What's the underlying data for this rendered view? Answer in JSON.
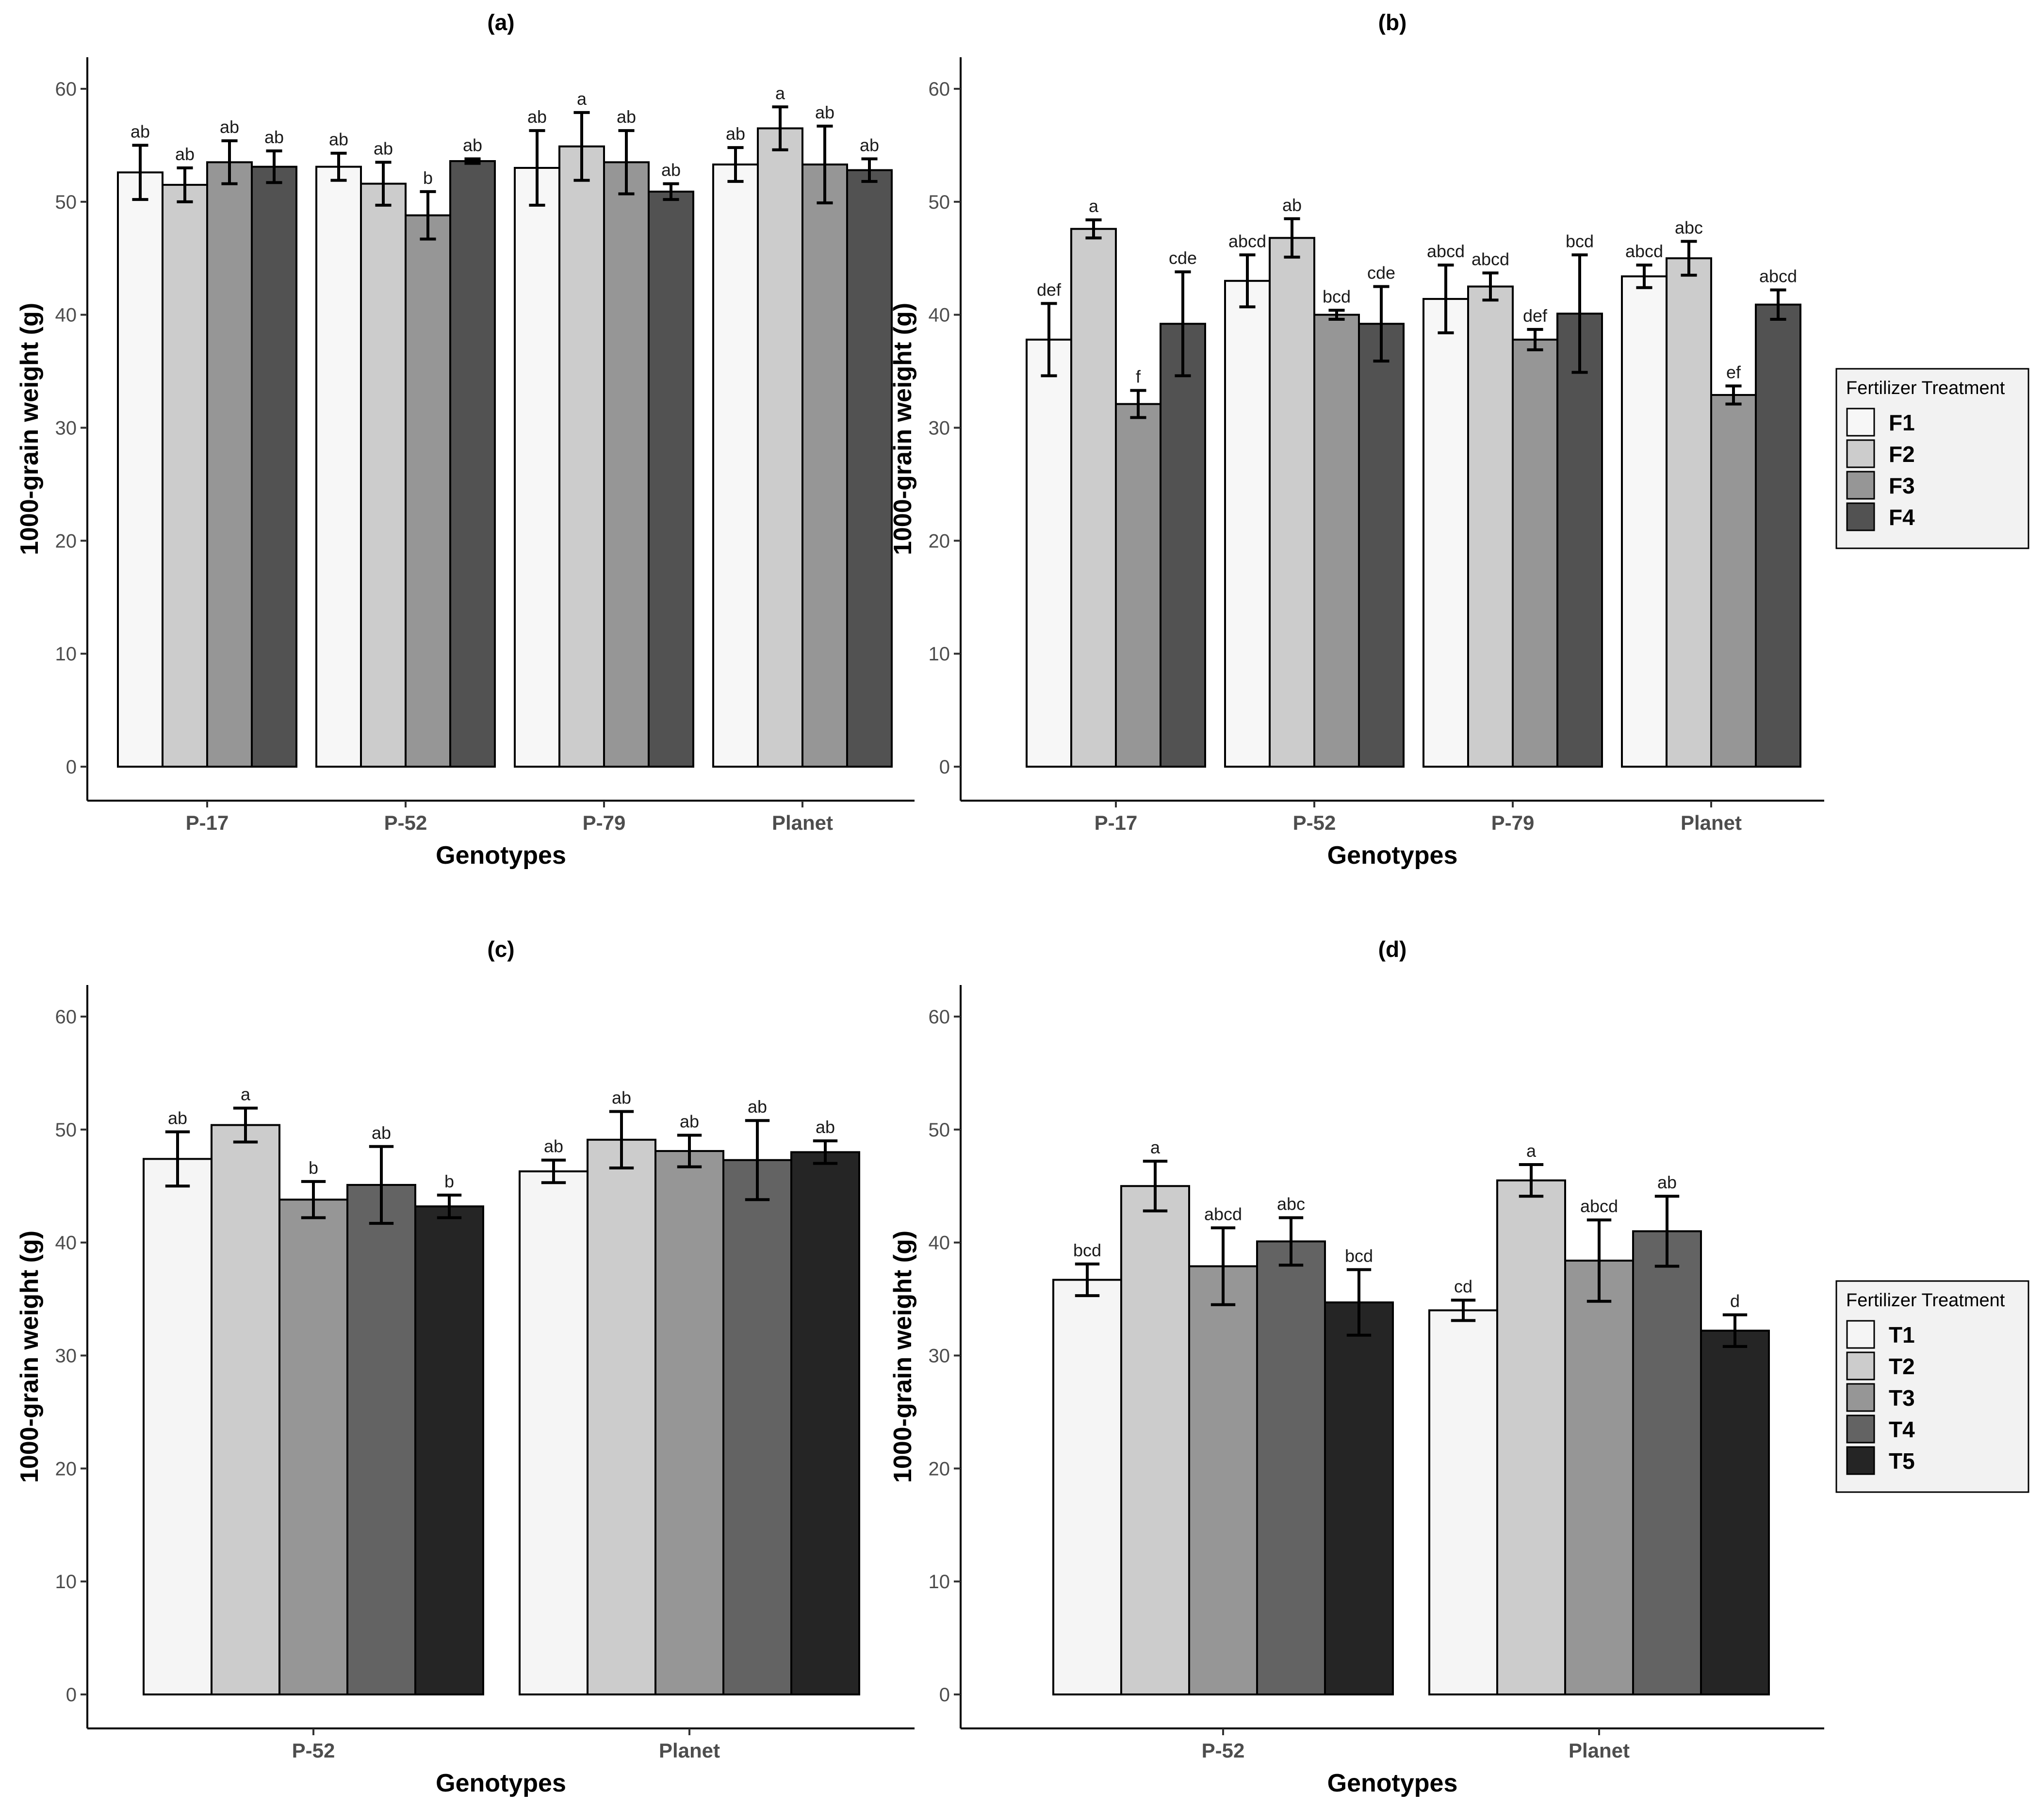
{
  "chart_data": [
    {
      "id": "a",
      "type": "bar",
      "title": "(a)",
      "xlabel": "Genotypes",
      "ylabel": "1000-grain weight (g)",
      "ylim": [
        0,
        60
      ],
      "yticks": [
        0,
        10,
        20,
        30,
        40,
        50,
        60
      ],
      "categories": [
        "P-17",
        "P-52",
        "P-79",
        "Planet"
      ],
      "series": [
        {
          "name": "F1",
          "color": "#f7f7f7",
          "values": [
            52.6,
            53.1,
            53.0,
            53.3
          ],
          "errors": [
            2.4,
            1.2,
            3.3,
            1.5
          ],
          "labels": [
            "ab",
            "ab",
            "ab",
            "ab"
          ]
        },
        {
          "name": "F2",
          "color": "#cccccc",
          "values": [
            51.5,
            51.6,
            54.9,
            56.5
          ],
          "errors": [
            1.5,
            1.9,
            3.0,
            1.9
          ],
          "labels": [
            "ab",
            "ab",
            "a",
            "a"
          ]
        },
        {
          "name": "F3",
          "color": "#969696",
          "values": [
            53.5,
            48.8,
            53.5,
            53.3
          ],
          "errors": [
            1.9,
            2.1,
            2.8,
            3.4
          ],
          "labels": [
            "ab",
            "b",
            "ab",
            "ab"
          ]
        },
        {
          "name": "F4",
          "color": "#525252",
          "values": [
            53.1,
            53.6,
            50.9,
            52.8
          ],
          "errors": [
            1.4,
            0.2,
            0.7,
            1.0
          ],
          "labels": [
            "ab",
            "ab",
            "ab",
            "ab"
          ]
        }
      ]
    },
    {
      "id": "b",
      "type": "bar",
      "title": "(b)",
      "xlabel": "Genotypes",
      "ylabel": "1000-grain weight (g)",
      "ylim": [
        0,
        60
      ],
      "yticks": [
        0,
        10,
        20,
        30,
        40,
        50,
        60
      ],
      "categories": [
        "P-17",
        "P-52",
        "P-79",
        "Planet"
      ],
      "series": [
        {
          "name": "F1",
          "color": "#f7f7f7",
          "values": [
            37.8,
            43.0,
            41.4,
            43.4
          ],
          "errors": [
            3.2,
            2.3,
            3.0,
            1.0
          ],
          "labels": [
            "def",
            "abcd",
            "abcd",
            "abcd"
          ]
        },
        {
          "name": "F2",
          "color": "#cccccc",
          "values": [
            47.6,
            46.8,
            42.5,
            45.0
          ],
          "errors": [
            0.8,
            1.7,
            1.2,
            1.5
          ],
          "labels": [
            "a",
            "ab",
            "abcd",
            "abc"
          ]
        },
        {
          "name": "F3",
          "color": "#969696",
          "values": [
            32.1,
            40.0,
            37.8,
            32.9
          ],
          "errors": [
            1.2,
            0.4,
            0.9,
            0.8
          ],
          "labels": [
            "f",
            "bcd",
            "def",
            "ef"
          ]
        },
        {
          "name": "F4",
          "color": "#525252",
          "values": [
            39.2,
            39.2,
            40.1,
            40.9
          ],
          "errors": [
            4.6,
            3.3,
            5.2,
            1.3
          ],
          "labels": [
            "cde",
            "cde",
            "bcd",
            "abcd"
          ]
        }
      ],
      "legend": {
        "title": "Fertilizer Treatment",
        "position": "right",
        "entries": [
          "F1",
          "F2",
          "F3",
          "F4"
        ]
      }
    },
    {
      "id": "c",
      "type": "bar",
      "title": "(c)",
      "xlabel": "Genotypes",
      "ylabel": "1000-grain weight (g)",
      "ylim": [
        0,
        60
      ],
      "yticks": [
        0,
        10,
        20,
        30,
        40,
        50,
        60
      ],
      "categories": [
        "P-52",
        "Planet"
      ],
      "series": [
        {
          "name": "T1",
          "color": "#f5f5f5",
          "values": [
            47.4,
            46.3
          ],
          "errors": [
            2.4,
            1.0
          ],
          "labels": [
            "ab",
            "ab"
          ]
        },
        {
          "name": "T2",
          "color": "#cccccc",
          "values": [
            50.4,
            49.1
          ],
          "errors": [
            1.5,
            2.5
          ],
          "labels": [
            "a",
            "ab"
          ]
        },
        {
          "name": "T3",
          "color": "#969696",
          "values": [
            43.8,
            48.1
          ],
          "errors": [
            1.6,
            1.4
          ],
          "labels": [
            "b",
            "ab"
          ]
        },
        {
          "name": "T4",
          "color": "#636363",
          "values": [
            45.1,
            47.3
          ],
          "errors": [
            3.4,
            3.5
          ],
          "labels": [
            "ab",
            "ab"
          ]
        },
        {
          "name": "T5",
          "color": "#252525",
          "values": [
            43.2,
            48.0
          ],
          "errors": [
            1.0,
            1.0
          ],
          "labels": [
            "b",
            "ab"
          ]
        }
      ]
    },
    {
      "id": "d",
      "type": "bar",
      "title": "(d)",
      "xlabel": "Genotypes",
      "ylabel": "1000-grain weight (g)",
      "ylim": [
        0,
        60
      ],
      "yticks": [
        0,
        10,
        20,
        30,
        40,
        50,
        60
      ],
      "categories": [
        "P-52",
        "Planet"
      ],
      "series": [
        {
          "name": "T1",
          "color": "#f5f5f5",
          "values": [
            36.7,
            34.0
          ],
          "errors": [
            1.4,
            0.9
          ],
          "labels": [
            "bcd",
            "cd"
          ]
        },
        {
          "name": "T2",
          "color": "#cccccc",
          "values": [
            45.0,
            45.5
          ],
          "errors": [
            2.2,
            1.4
          ],
          "labels": [
            "a",
            "a"
          ]
        },
        {
          "name": "T3",
          "color": "#969696",
          "values": [
            37.9,
            38.4
          ],
          "errors": [
            3.4,
            3.6
          ],
          "labels": [
            "abcd",
            "abcd"
          ]
        },
        {
          "name": "T4",
          "color": "#636363",
          "values": [
            40.1,
            41.0
          ],
          "errors": [
            2.1,
            3.1
          ],
          "labels": [
            "abc",
            "ab"
          ]
        },
        {
          "name": "T5",
          "color": "#252525",
          "values": [
            34.7,
            32.2
          ],
          "errors": [
            2.9,
            1.4
          ],
          "labels": [
            "bcd",
            "d"
          ]
        }
      ],
      "legend": {
        "title": "Fertilizer Treatment",
        "position": "right",
        "entries": [
          "T1",
          "T2",
          "T3",
          "T4",
          "T5"
        ]
      }
    }
  ]
}
